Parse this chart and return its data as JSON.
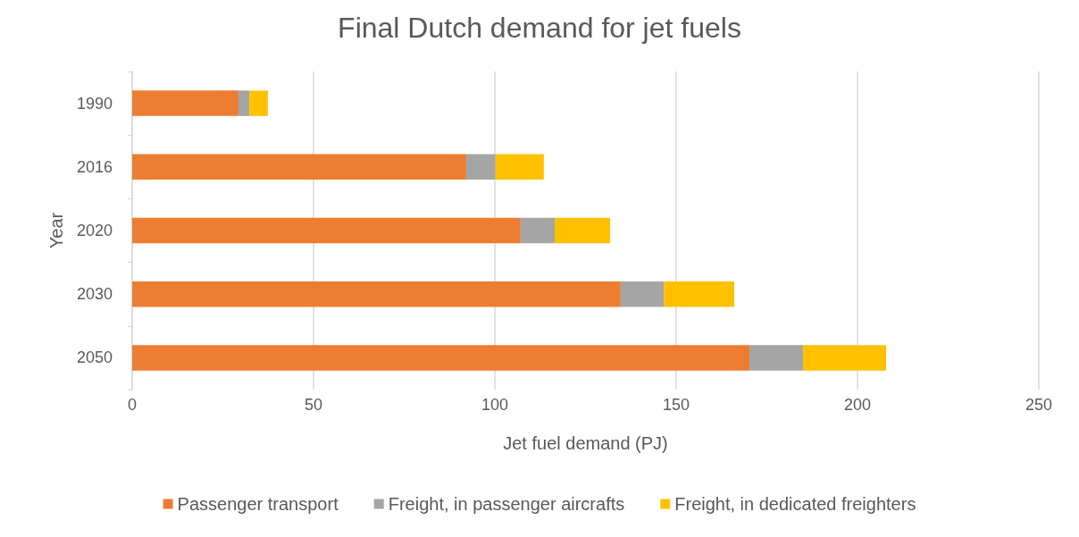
{
  "chart_data": {
    "type": "bar",
    "orientation": "horizontal",
    "stacked": true,
    "title": "Final Dutch demand for jet fuels",
    "xlabel": "Jet fuel demand (PJ)",
    "ylabel": "Year",
    "categories": [
      "1990",
      "2016",
      "2020",
      "2030",
      "2050"
    ],
    "series": [
      {
        "name": "Passenger transport",
        "color": "#ed7d31",
        "values": [
          29.3,
          92.1,
          107.1,
          134.7,
          170.2
        ]
      },
      {
        "name": "Freight, in passenger aircrafts",
        "color": "#a5a5a5",
        "values": [
          3,
          8.1,
          9.4,
          11.9,
          14.8
        ]
      },
      {
        "name": "Freight, in dedicated freighters",
        "color": "#ffc000",
        "values": [
          5.1,
          13.3,
          15.3,
          19.4,
          22.9
        ]
      }
    ],
    "xlim": [
      0,
      250
    ],
    "xticks": [
      0,
      50,
      100,
      150,
      200,
      250
    ],
    "grid": "x",
    "legend": "bottom"
  }
}
